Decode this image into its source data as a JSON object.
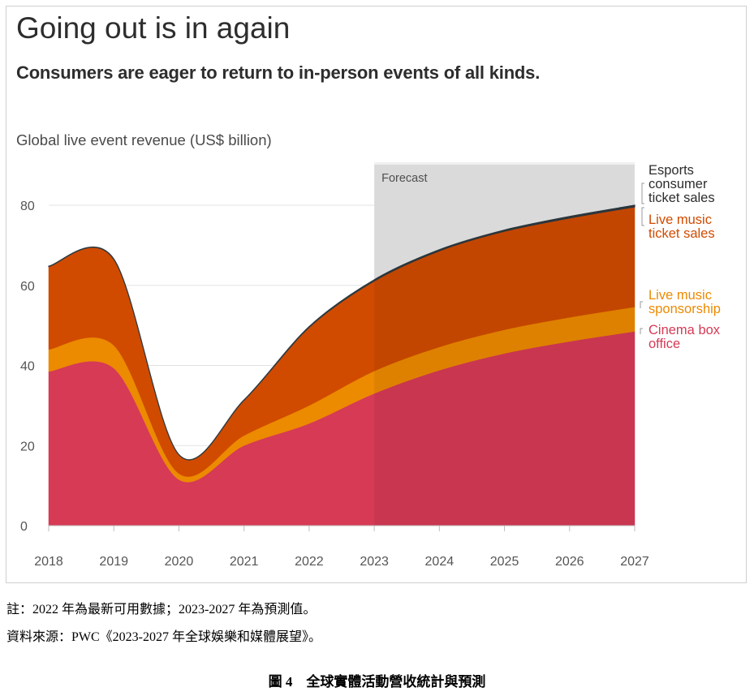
{
  "title": "Going out is in again",
  "subtitle": "Consumers are eager to return to in-person events of all kinds.",
  "notes": {
    "note1": "註：2022 年為最新可用數據；2023-2027 年為預測值。",
    "note2": "資料來源：PWC《2023-2027 年全球娛樂和媒體展望》。"
  },
  "caption": "圖 4　全球實體活動營收統計與預測",
  "chart_data": {
    "type": "area",
    "stacked": true,
    "title": "Going out is in again",
    "ylabel": "Global live event revenue (US$ billion)",
    "xlabel": "",
    "x": [
      2018,
      2019,
      2020,
      2021,
      2022,
      2023,
      2024,
      2025,
      2026,
      2027
    ],
    "ylim": [
      0,
      90
    ],
    "yticks": [
      0,
      20,
      40,
      60,
      80
    ],
    "grid": true,
    "forecast": {
      "label": "Forecast",
      "from": 2023,
      "to": 2027
    },
    "series": [
      {
        "name": "Cinema box office",
        "color": "#d63a55",
        "values": [
          38.5,
          39.3,
          11.5,
          20.0,
          25.5,
          33.0,
          38.8,
          43.0,
          46.0,
          48.5
        ]
      },
      {
        "name": "Live music sponsorship",
        "color": "#ec8a00",
        "values": [
          5.5,
          5.7,
          1.5,
          2.5,
          4.5,
          5.6,
          5.8,
          5.9,
          6.0,
          6.1
        ]
      },
      {
        "name": "Live music ticket sales",
        "color": "#d04b00",
        "values": [
          20.7,
          21.5,
          4.7,
          8.8,
          19.5,
          22.5,
          24.0,
          24.6,
          24.8,
          25.0
        ]
      },
      {
        "name": "Esports consumer ticket sales",
        "color": "#2e3a40",
        "values": [
          0.1,
          0.1,
          0.05,
          0.1,
          0.2,
          0.3,
          0.3,
          0.3,
          0.4,
          0.4
        ]
      }
    ],
    "legend": {
      "placement": "right",
      "entries": [
        {
          "lines": [
            "Esports",
            "consumer",
            "ticket sales"
          ],
          "color": "#2d2d2d"
        },
        {
          "lines": [
            "Live music",
            "ticket sales"
          ],
          "color": "#d04b00"
        },
        {
          "lines": [
            "Live music",
            "sponsorship"
          ],
          "color": "#ec8a00"
        },
        {
          "lines": [
            "Cinema box",
            "office"
          ],
          "color": "#d63a55"
        }
      ]
    }
  }
}
